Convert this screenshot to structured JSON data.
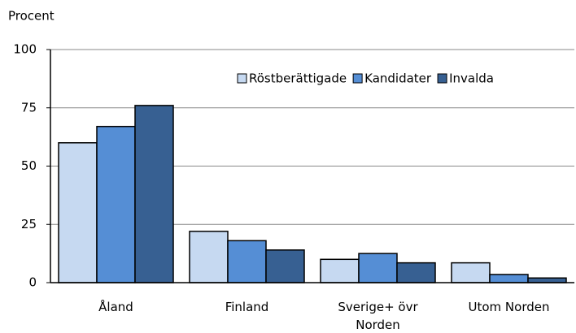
{
  "chart_data": {
    "type": "bar",
    "y_label": "Procent",
    "categories": [
      "Åland",
      "Finland",
      "Sverige+ övr\nNorden",
      "Utom Norden"
    ],
    "series": [
      {
        "name": "Röstberättigade",
        "color": "#c6d9f1",
        "values": [
          60,
          22,
          10,
          8.5
        ]
      },
      {
        "name": "Kandidater",
        "color": "#558ed5",
        "values": [
          67,
          18,
          12.5,
          3.5
        ]
      },
      {
        "name": "Invalda",
        "color": "#376092",
        "values": [
          76,
          14,
          8.5,
          2
        ]
      }
    ],
    "ylim": [
      0,
      100
    ],
    "yticks": [
      0,
      25,
      50,
      75,
      100
    ],
    "grid": true,
    "legend": "top-right"
  }
}
